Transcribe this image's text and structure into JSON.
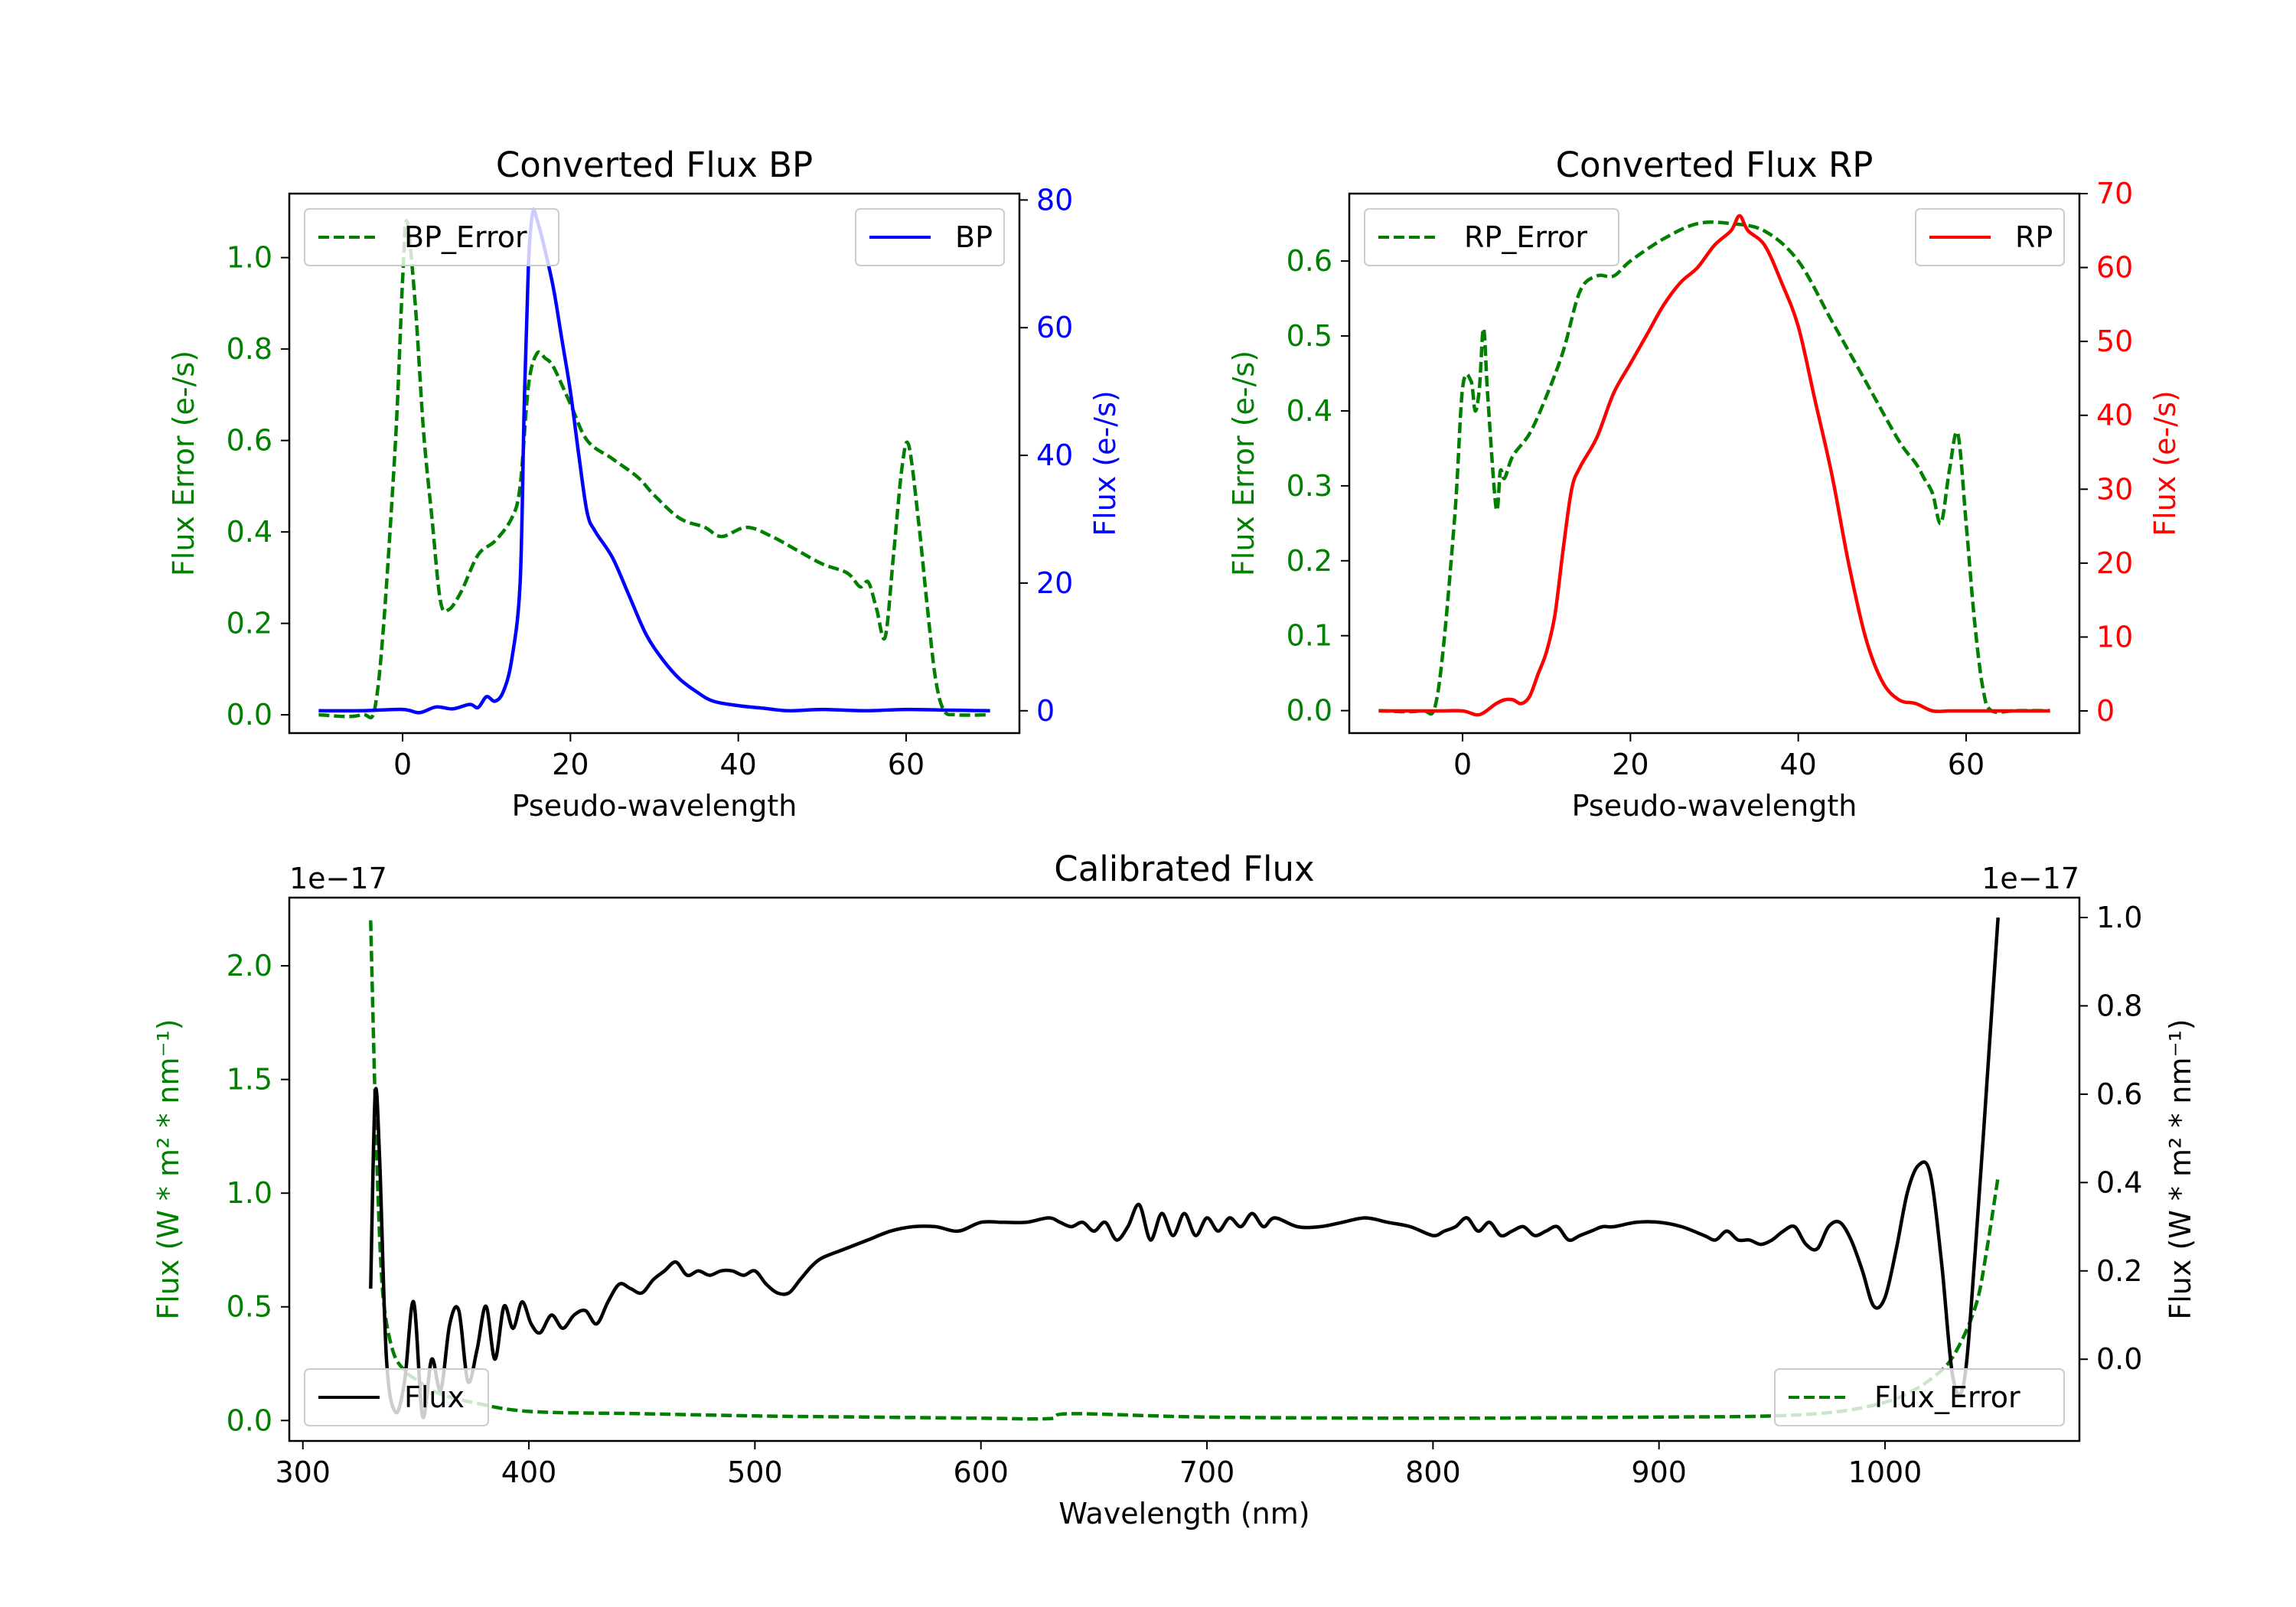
{
  "colors": {
    "green": "#007f00",
    "blue": "#0000ff",
    "red": "#ff0000",
    "black": "#000000"
  },
  "chart_data": [
    {
      "id": "bp",
      "type": "line",
      "title": "Converted Flux BP",
      "xlabel": "Pseudo-wavelength",
      "ylabel_left": "Flux Error (e-/s)",
      "ylabel_right": "Flux (e-/s)",
      "xlim": [
        -13.5,
        73.5
      ],
      "ylim_left": [
        -0.04,
        1.14
      ],
      "ylim_right": [
        -3.5,
        81
      ],
      "xticks": [
        0,
        20,
        40,
        60
      ],
      "yticks_left": [
        0.0,
        0.2,
        0.4,
        0.6,
        0.8,
        1.0
      ],
      "ytick_labels_left": [
        "0.0",
        "0.2",
        "0.4",
        "0.6",
        "0.8",
        "1.0"
      ],
      "yticks_right": [
        0,
        20,
        40,
        60,
        80
      ],
      "ytick_labels_right": [
        "0",
        "20",
        "40",
        "60",
        "80"
      ],
      "legend_left": {
        "label": "BP_Error",
        "placement": "upper left"
      },
      "legend_right": {
        "label": "BP",
        "placement": "upper right"
      },
      "series": [
        {
          "name": "BP_Error",
          "axis": "left",
          "color": "green",
          "dash": true,
          "x": [
            -10,
            -5,
            -3,
            -1,
            0,
            0.5,
            1.5,
            2.5,
            3.5,
            4.5,
            5.5,
            7,
            9,
            11,
            13,
            14,
            15,
            16,
            17,
            18,
            20,
            22,
            25,
            28,
            30,
            33,
            36,
            38,
            41,
            44,
            47,
            50,
            53,
            54.5,
            55.5,
            56.5,
            57.5,
            58.5,
            59.5,
            60.3,
            61.5,
            62.5,
            63.5,
            64.5,
            66,
            70
          ],
          "values": [
            0.0,
            0.0,
            0.05,
            0.55,
            0.95,
            1.08,
            0.9,
            0.62,
            0.43,
            0.25,
            0.23,
            0.27,
            0.35,
            0.38,
            0.43,
            0.5,
            0.72,
            0.79,
            0.78,
            0.76,
            0.68,
            0.6,
            0.56,
            0.52,
            0.48,
            0.43,
            0.41,
            0.39,
            0.41,
            0.39,
            0.36,
            0.33,
            0.31,
            0.28,
            0.29,
            0.23,
            0.17,
            0.35,
            0.54,
            0.59,
            0.42,
            0.24,
            0.08,
            0.01,
            0.0,
            0.0
          ]
        },
        {
          "name": "BP",
          "axis": "right",
          "color": "blue",
          "dash": false,
          "x": [
            -10,
            -5,
            0,
            2,
            4,
            6,
            8,
            9,
            10,
            11,
            12,
            13,
            14,
            14.5,
            15,
            15.5,
            16,
            17,
            18,
            19,
            20,
            21,
            22,
            23,
            25,
            27,
            29,
            31,
            33,
            35,
            37,
            40,
            43,
            46,
            50,
            55,
            60,
            65,
            70
          ],
          "values": [
            0,
            0,
            0.2,
            -0.3,
            0.6,
            0.3,
            1.0,
            0.5,
            2.2,
            1.5,
            3.0,
            8.0,
            20.0,
            48.0,
            70.0,
            78.0,
            77.0,
            72.0,
            66.0,
            58.0,
            50.0,
            40.0,
            31.0,
            28.0,
            24.0,
            18.0,
            12.0,
            8.0,
            5.0,
            3.0,
            1.5,
            0.8,
            0.4,
            0.0,
            0.2,
            0.0,
            0.2,
            0.1,
            0.0
          ]
        }
      ]
    },
    {
      "id": "rp",
      "type": "line",
      "title": "Converted Flux RP",
      "xlabel": "Pseudo-wavelength",
      "ylabel_left": "Flux Error (e-/s)",
      "ylabel_right": "Flux (e-/s)",
      "xlim": [
        -13.5,
        73.5
      ],
      "ylim_left": [
        -0.03,
        0.69
      ],
      "ylim_right": [
        -3.0,
        70
      ],
      "xticks": [
        0,
        20,
        40,
        60
      ],
      "yticks_left": [
        0.0,
        0.1,
        0.2,
        0.3,
        0.4,
        0.5,
        0.6
      ],
      "ytick_labels_left": [
        "0.0",
        "0.1",
        "0.2",
        "0.3",
        "0.4",
        "0.5",
        "0.6"
      ],
      "yticks_right": [
        0,
        10,
        20,
        30,
        40,
        50,
        60,
        70
      ],
      "ytick_labels_right": [
        "0",
        "10",
        "20",
        "30",
        "40",
        "50",
        "60",
        "70"
      ],
      "legend_left": {
        "label": "RP_Error",
        "placement": "upper left"
      },
      "legend_right": {
        "label": "RP",
        "placement": "upper right"
      },
      "series": [
        {
          "name": "RP_Error",
          "axis": "left",
          "color": "green",
          "dash": true,
          "x": [
            -10,
            -5,
            -3,
            -1,
            0,
            1,
            1.5,
            2,
            2.5,
            3,
            4,
            4.5,
            5,
            6,
            8,
            10,
            12,
            14,
            16,
            18,
            20,
            24,
            28,
            32,
            36,
            40,
            44,
            48,
            52,
            54,
            55,
            56,
            57,
            58,
            59,
            60,
            61,
            62,
            63,
            66,
            70
          ],
          "values": [
            0.0,
            0.0,
            0.02,
            0.25,
            0.43,
            0.44,
            0.4,
            0.43,
            0.51,
            0.42,
            0.27,
            0.32,
            0.31,
            0.34,
            0.37,
            0.42,
            0.48,
            0.56,
            0.58,
            0.58,
            0.6,
            0.63,
            0.65,
            0.65,
            0.64,
            0.6,
            0.52,
            0.44,
            0.36,
            0.33,
            0.31,
            0.29,
            0.25,
            0.32,
            0.37,
            0.25,
            0.12,
            0.03,
            0.0,
            0.0,
            0.0
          ]
        },
        {
          "name": "RP",
          "axis": "right",
          "color": "red",
          "dash": false,
          "x": [
            -10,
            -3,
            0,
            2,
            4,
            5,
            6,
            7,
            8,
            9,
            10,
            11,
            12,
            13,
            14,
            16,
            18,
            20,
            22,
            24,
            26,
            28,
            30,
            32,
            33,
            34,
            36,
            38,
            40,
            42,
            44,
            46,
            48,
            50,
            52,
            54,
            56,
            58,
            60,
            65,
            70
          ],
          "values": [
            0,
            0,
            0,
            -0.5,
            1.0,
            1.5,
            1.5,
            1.0,
            2.0,
            5.0,
            8.0,
            13.0,
            22.0,
            30.0,
            33.0,
            37.0,
            43.0,
            47.0,
            51.0,
            55.0,
            58.0,
            60.0,
            63.0,
            65.0,
            67.0,
            65.0,
            63.0,
            58.0,
            52.0,
            42.0,
            32.0,
            20.0,
            10.0,
            4.0,
            1.5,
            1.0,
            0.0,
            0.0,
            0.0,
            0.0,
            0.0
          ]
        }
      ]
    },
    {
      "id": "cal",
      "type": "line",
      "title": "Calibrated Flux",
      "xlabel": "Wavelength (nm)",
      "ylabel_left": "Flux (W * m² * nm⁻¹)",
      "ylabel_right": "Flux (W * m² * nm⁻¹)",
      "offset_left": "1e−17",
      "offset_right": "1e−17",
      "xlim": [
        294,
        1086
      ],
      "ylim_left": [
        -0.09,
        2.3
      ],
      "ylim_right": [
        -0.185,
        1.045
      ],
      "xticks": [
        300,
        400,
        500,
        600,
        700,
        800,
        900,
        1000
      ],
      "yticks_left": [
        0.0,
        0.5,
        1.0,
        1.5,
        2.0
      ],
      "ytick_labels_left": [
        "0.0",
        "0.5",
        "1.0",
        "1.5",
        "2.0"
      ],
      "yticks_right": [
        0.0,
        0.2,
        0.4,
        0.6,
        0.8,
        1.0
      ],
      "ytick_labels_right": [
        "0.0",
        "0.2",
        "0.4",
        "0.6",
        "0.8",
        "1.0"
      ],
      "legend_left": {
        "label": "Flux",
        "placement": "lower left"
      },
      "legend_right": {
        "label": "Flux_Error",
        "placement": "lower right"
      },
      "series": [
        {
          "name": "Flux_Error",
          "axis": "left",
          "color": "green",
          "dash": true,
          "x": [
            330,
            332,
            334,
            336,
            340,
            345,
            350,
            360,
            375,
            400,
            450,
            500,
            550,
            600,
            630,
            640,
            700,
            800,
            900,
            950,
            980,
            1000,
            1010,
            1020,
            1030,
            1040,
            1045,
            1050
          ],
          "values": [
            2.2,
            1.4,
            0.8,
            0.5,
            0.3,
            0.22,
            0.18,
            0.12,
            0.08,
            0.04,
            0.03,
            0.02,
            0.015,
            0.01,
            0.008,
            0.03,
            0.015,
            0.01,
            0.015,
            0.02,
            0.04,
            0.08,
            0.12,
            0.18,
            0.28,
            0.5,
            0.75,
            1.07
          ]
        },
        {
          "name": "Flux",
          "axis": "right",
          "color": "black",
          "dash": false,
          "x": [
            330,
            332,
            334,
            337,
            341,
            345,
            349,
            353,
            357,
            361,
            365,
            369,
            373,
            377,
            381,
            385,
            389,
            393,
            397,
            401,
            405,
            410,
            415,
            420,
            425,
            430,
            435,
            440,
            445,
            450,
            455,
            460,
            465,
            470,
            475,
            480,
            485,
            490,
            495,
            500,
            505,
            510,
            515,
            520,
            525,
            530,
            540,
            550,
            560,
            570,
            580,
            590,
            600,
            610,
            620,
            630,
            635,
            640,
            645,
            650,
            655,
            660,
            665,
            670,
            675,
            680,
            685,
            690,
            695,
            700,
            705,
            710,
            715,
            720,
            725,
            730,
            740,
            750,
            760,
            770,
            780,
            790,
            800,
            805,
            810,
            815,
            820,
            825,
            830,
            835,
            840,
            845,
            850,
            855,
            860,
            865,
            870,
            875,
            880,
            890,
            900,
            910,
            920,
            925,
            930,
            935,
            940,
            945,
            950,
            955,
            960,
            965,
            970,
            975,
            980,
            985,
            990,
            995,
            1000,
            1005,
            1010,
            1015,
            1020,
            1025,
            1030,
            1035,
            1040,
            1045,
            1050
          ],
          "values": [
            0.16,
            0.6,
            0.45,
            0.0,
            -0.12,
            -0.05,
            0.13,
            -0.13,
            0.0,
            -0.07,
            0.08,
            0.11,
            -0.05,
            0.02,
            0.12,
            0.0,
            0.12,
            0.07,
            0.13,
            0.08,
            0.06,
            0.1,
            0.07,
            0.1,
            0.11,
            0.08,
            0.13,
            0.17,
            0.16,
            0.15,
            0.18,
            0.2,
            0.22,
            0.19,
            0.2,
            0.19,
            0.2,
            0.2,
            0.19,
            0.2,
            0.17,
            0.15,
            0.15,
            0.18,
            0.21,
            0.23,
            0.25,
            0.27,
            0.29,
            0.3,
            0.3,
            0.29,
            0.31,
            0.31,
            0.31,
            0.32,
            0.31,
            0.3,
            0.31,
            0.29,
            0.31,
            0.27,
            0.3,
            0.35,
            0.27,
            0.33,
            0.28,
            0.33,
            0.28,
            0.32,
            0.29,
            0.32,
            0.3,
            0.33,
            0.3,
            0.32,
            0.3,
            0.3,
            0.31,
            0.32,
            0.31,
            0.3,
            0.28,
            0.29,
            0.3,
            0.32,
            0.29,
            0.31,
            0.28,
            0.29,
            0.3,
            0.28,
            0.29,
            0.3,
            0.27,
            0.28,
            0.29,
            0.3,
            0.3,
            0.31,
            0.31,
            0.3,
            0.28,
            0.27,
            0.29,
            0.27,
            0.27,
            0.26,
            0.27,
            0.29,
            0.3,
            0.26,
            0.25,
            0.3,
            0.31,
            0.27,
            0.2,
            0.12,
            0.14,
            0.25,
            0.38,
            0.44,
            0.42,
            0.22,
            -0.04,
            -0.05,
            0.25,
            0.62,
            1.0
          ]
        }
      ]
    }
  ]
}
